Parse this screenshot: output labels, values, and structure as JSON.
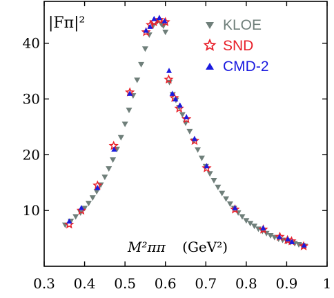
{
  "chart_data": {
    "type": "scatter",
    "ylabel": "|Fπ|²",
    "xlabel_main": "M²ππ",
    "xlabel_unit": "(GeV²)",
    "xlim": [
      0.3,
      1.0
    ],
    "ylim": [
      0,
      47.5
    ],
    "xticks": [
      "0.3",
      "0.4",
      "0.5",
      "0.6",
      "0.7",
      "0.8",
      "0.9",
      "1"
    ],
    "yticks": [
      "10",
      "20",
      "30",
      "40"
    ],
    "grid": false,
    "legend_position": "top-right",
    "series": [
      {
        "name": "KLOE",
        "color": "#6f7f7a",
        "marker": "triangle-down",
        "points": [
          [
            0.352,
            7.4
          ],
          [
            0.366,
            8.1
          ],
          [
            0.378,
            8.9
          ],
          [
            0.39,
            9.6
          ],
          [
            0.4,
            10.4
          ],
          [
            0.41,
            11.3
          ],
          [
            0.42,
            12.3
          ],
          [
            0.43,
            13.4
          ],
          [
            0.44,
            14.6
          ],
          [
            0.45,
            16.0
          ],
          [
            0.46,
            17.5
          ],
          [
            0.47,
            19.1
          ],
          [
            0.48,
            21.0
          ],
          [
            0.49,
            23.1
          ],
          [
            0.5,
            25.5
          ],
          [
            0.51,
            28.0
          ],
          [
            0.52,
            30.6
          ],
          [
            0.53,
            33.4
          ],
          [
            0.54,
            36.2
          ],
          [
            0.55,
            39.0
          ],
          [
            0.56,
            41.5
          ],
          [
            0.57,
            43.2
          ],
          [
            0.58,
            43.9
          ],
          [
            0.59,
            43.4
          ],
          [
            0.595,
            43.1
          ],
          [
            0.6,
            42.0
          ],
          [
            0.61,
            33.0
          ],
          [
            0.618,
            30.8
          ],
          [
            0.626,
            29.8
          ],
          [
            0.634,
            28.5
          ],
          [
            0.642,
            27.2
          ],
          [
            0.65,
            25.7
          ],
          [
            0.66,
            24.2
          ],
          [
            0.67,
            22.5
          ],
          [
            0.68,
            20.9
          ],
          [
            0.69,
            19.4
          ],
          [
            0.7,
            17.9
          ],
          [
            0.71,
            16.6
          ],
          [
            0.72,
            15.4
          ],
          [
            0.73,
            14.2
          ],
          [
            0.74,
            13.1
          ],
          [
            0.75,
            12.1
          ],
          [
            0.76,
            11.2
          ],
          [
            0.77,
            10.4
          ],
          [
            0.78,
            9.6
          ],
          [
            0.79,
            8.9
          ],
          [
            0.8,
            8.2
          ],
          [
            0.81,
            7.7
          ],
          [
            0.82,
            7.2
          ],
          [
            0.83,
            6.7
          ],
          [
            0.84,
            6.3
          ],
          [
            0.85,
            5.9
          ],
          [
            0.86,
            5.5
          ],
          [
            0.87,
            5.2
          ],
          [
            0.88,
            4.9
          ],
          [
            0.89,
            4.7
          ],
          [
            0.9,
            4.5
          ],
          [
            0.91,
            4.3
          ],
          [
            0.92,
            4.1
          ],
          [
            0.93,
            3.9
          ],
          [
            0.94,
            3.7
          ],
          [
            0.945,
            3.6
          ]
        ]
      },
      {
        "name": "SND",
        "color": "#e8202a",
        "marker": "star",
        "points": [
          [
            0.362,
            7.5
          ],
          [
            0.392,
            10.0
          ],
          [
            0.432,
            14.5
          ],
          [
            0.472,
            21.6
          ],
          [
            0.512,
            31.2
          ],
          [
            0.552,
            42.0
          ],
          [
            0.563,
            43.3
          ],
          [
            0.572,
            43.8
          ],
          [
            0.585,
            44.2
          ],
          [
            0.6,
            43.8
          ],
          [
            0.608,
            33.5
          ],
          [
            0.622,
            30.2
          ],
          [
            0.634,
            28.3
          ],
          [
            0.652,
            26.4
          ],
          [
            0.672,
            22.5
          ],
          [
            0.702,
            17.6
          ],
          [
            0.772,
            10.2
          ],
          [
            0.842,
            6.6
          ],
          [
            0.883,
            5.3
          ],
          [
            0.902,
            4.7
          ],
          [
            0.912,
            4.5
          ],
          [
            0.942,
            3.6
          ]
        ]
      },
      {
        "name": "CMD-2",
        "color": "#1a1adf",
        "marker": "triangle-up",
        "points": [
          [
            0.362,
            8.1
          ],
          [
            0.392,
            10.5
          ],
          [
            0.432,
            14.1
          ],
          [
            0.473,
            21.0
          ],
          [
            0.512,
            31.0
          ],
          [
            0.552,
            42.3
          ],
          [
            0.562,
            43.0
          ],
          [
            0.572,
            44.4
          ],
          [
            0.585,
            44.6
          ],
          [
            0.598,
            44.0
          ],
          [
            0.609,
            35.1
          ],
          [
            0.617,
            31.0
          ],
          [
            0.625,
            30.0
          ],
          [
            0.636,
            28.9
          ],
          [
            0.652,
            26.8
          ],
          [
            0.672,
            22.9
          ],
          [
            0.702,
            18.0
          ],
          [
            0.772,
            10.5
          ],
          [
            0.842,
            6.9
          ],
          [
            0.882,
            5.3
          ],
          [
            0.903,
            4.9
          ],
          [
            0.913,
            4.4
          ],
          [
            0.943,
            3.8
          ]
        ]
      }
    ]
  }
}
